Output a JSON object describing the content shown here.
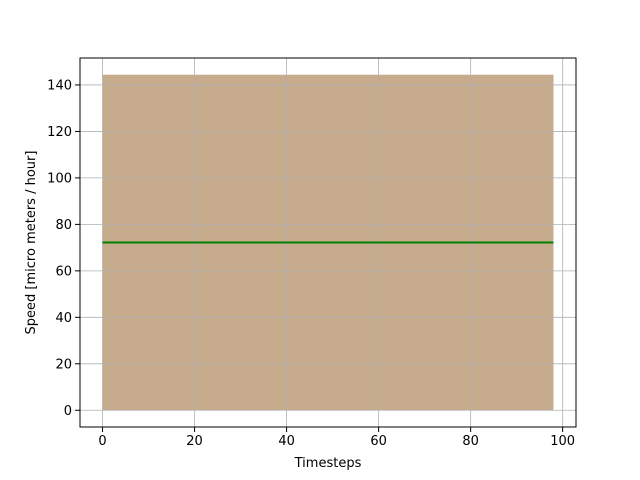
{
  "chart_data": {
    "type": "area",
    "title": "",
    "xlabel": "Timesteps",
    "ylabel": "Speed [micro meters / hour]",
    "xlim": [
      -4.9,
      102.9
    ],
    "ylim": [
      -7.2,
      151.6
    ],
    "xticks": [
      0,
      20,
      40,
      60,
      80,
      100
    ],
    "yticks": [
      0,
      20,
      40,
      60,
      80,
      100,
      120,
      140
    ],
    "grid": true,
    "fill_band": {
      "x_start": 0,
      "x_end": 98,
      "y_low": 0,
      "y_high": 144.4,
      "color": "#c6ab8c"
    },
    "line": {
      "x": [
        0,
        98
      ],
      "y": [
        72.2,
        72.2
      ],
      "color": "#008000"
    }
  }
}
